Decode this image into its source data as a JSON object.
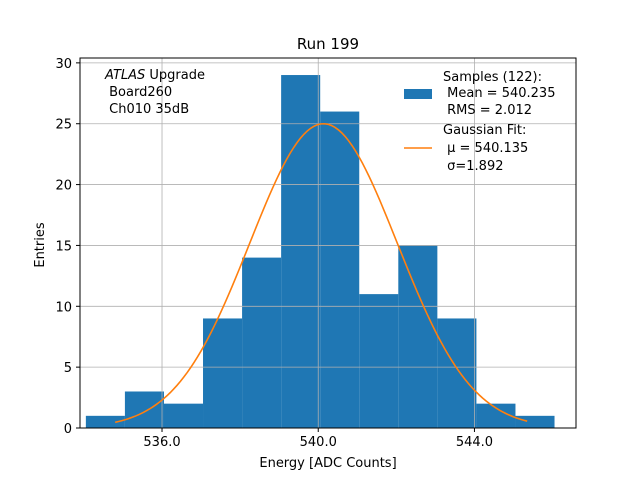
{
  "chart_data": {
    "type": "bar",
    "title": "Run 199",
    "xlabel": "Energy [ADC Counts]",
    "ylabel": "Entries",
    "xlim": [
      533.9,
      546.6
    ],
    "ylim": [
      0,
      30.4
    ],
    "grid": true,
    "x_ticks": [
      536,
      540,
      544
    ],
    "x_tick_labels": [
      "536.0",
      "540.0",
      "544.0"
    ],
    "y_ticks": [
      0,
      5,
      10,
      15,
      20,
      25,
      30
    ],
    "y_tick_labels": [
      "0",
      "5",
      "10",
      "15",
      "20",
      "25",
      "30"
    ],
    "bin_edges": [
      534.05,
      535.05,
      536.05,
      537.05,
      538.05,
      539.05,
      540.05,
      541.05,
      542.05,
      543.05,
      544.05,
      545.05,
      546.05
    ],
    "series": [
      {
        "name": "Samples (122):",
        "kind": "histogram",
        "values": [
          1,
          3,
          2,
          9,
          14,
          29,
          26,
          11,
          15,
          9,
          2,
          1
        ],
        "color": "#1f77b4"
      },
      {
        "name": "Gaussian Fit:",
        "kind": "gaussian-line",
        "mu": 540.135,
        "sigma": 1.892,
        "amplitude": 25,
        "x_range": [
          534.8,
          545.35
        ],
        "color": "#ff7f0e"
      }
    ],
    "legend": {
      "placement": "top-right",
      "entries": [
        {
          "lines": [
            "Samples (122):",
            " Mean = 540.235",
            " RMS = 2.012"
          ]
        },
        {
          "lines": [
            "Gaussian Fit:",
            " μ = 540.135",
            " σ=1.892"
          ]
        }
      ]
    },
    "annotation": {
      "italic": "ATLAS",
      "rest": " Upgrade",
      "line2": " Board260",
      "line3": " Ch010 35dB"
    }
  }
}
